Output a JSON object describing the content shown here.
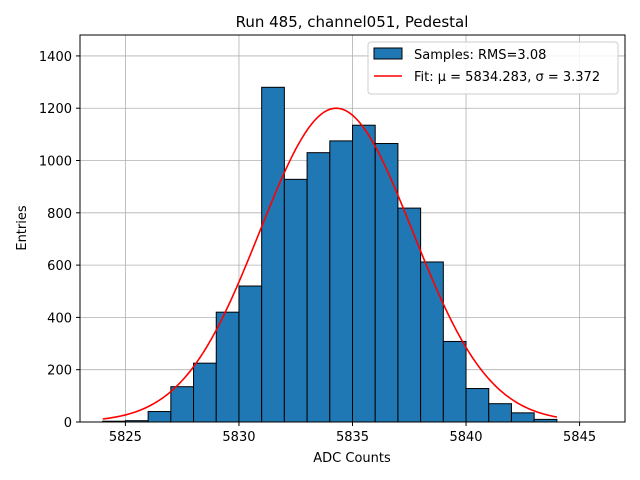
{
  "chart_data": {
    "type": "bar",
    "title": "Run 485, channel051, Pedestal",
    "xlabel": "ADC Counts",
    "ylabel": "Entries",
    "xlim": [
      5823,
      5847
    ],
    "ylim": [
      0,
      1480
    ],
    "xticks": [
      5825,
      5830,
      5835,
      5840,
      5845
    ],
    "yticks": [
      0,
      200,
      400,
      600,
      800,
      1000,
      1200,
      1400
    ],
    "grid": true,
    "legend_position": "top-right",
    "bins": [
      {
        "x0": 5824,
        "x1": 5825,
        "count": 3
      },
      {
        "x0": 5825,
        "x1": 5826,
        "count": 5
      },
      {
        "x0": 5826,
        "x1": 5827,
        "count": 40
      },
      {
        "x0": 5827,
        "x1": 5828,
        "count": 135
      },
      {
        "x0": 5828,
        "x1": 5829,
        "count": 225
      },
      {
        "x0": 5829,
        "x1": 5830,
        "count": 420
      },
      {
        "x0": 5830,
        "x1": 5831,
        "count": 520
      },
      {
        "x0": 5831,
        "x1": 5832,
        "count": 1280
      },
      {
        "x0": 5832,
        "x1": 5833,
        "count": 928
      },
      {
        "x0": 5833,
        "x1": 5834,
        "count": 1030
      },
      {
        "x0": 5834,
        "x1": 5835,
        "count": 1075
      },
      {
        "x0": 5835,
        "x1": 5836,
        "count": 1135
      },
      {
        "x0": 5836,
        "x1": 5837,
        "count": 1065
      },
      {
        "x0": 5837,
        "x1": 5838,
        "count": 818
      },
      {
        "x0": 5838,
        "x1": 5839,
        "count": 612
      },
      {
        "x0": 5839,
        "x1": 5840,
        "count": 308
      },
      {
        "x0": 5840,
        "x1": 5841,
        "count": 128
      },
      {
        "x0": 5841,
        "x1": 5842,
        "count": 70
      },
      {
        "x0": 5842,
        "x1": 5843,
        "count": 35
      },
      {
        "x0": 5843,
        "x1": 5844,
        "count": 10
      }
    ],
    "fit": {
      "mu": 5834.283,
      "sigma": 3.372,
      "amplitude": 1200,
      "x_range": [
        5824,
        5844
      ]
    },
    "series": [
      {
        "name": "Samples: RMS=3.08",
        "kind": "histogram",
        "color": "#1f77b4"
      },
      {
        "name": "Fit: μ = 5834.283, σ = 3.372",
        "kind": "line",
        "color": "#ff0000"
      }
    ]
  }
}
